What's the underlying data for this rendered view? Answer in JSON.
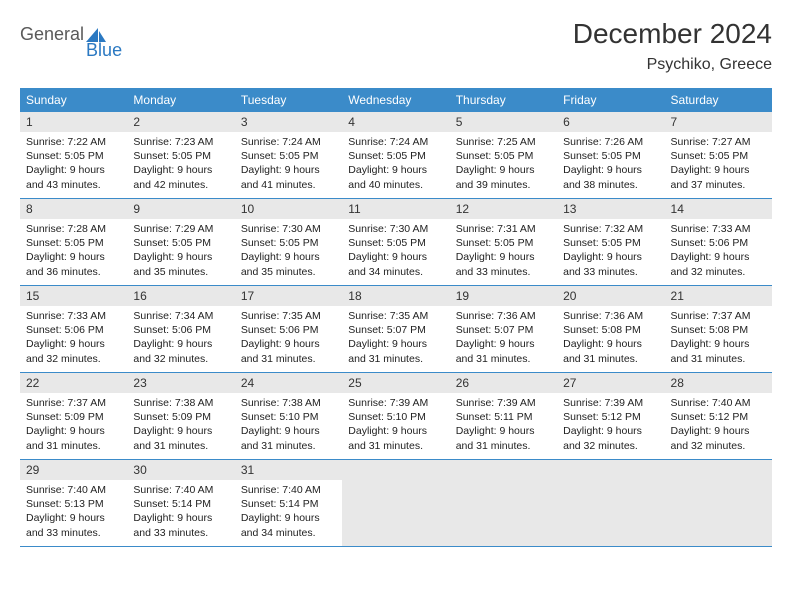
{
  "logo": {
    "text1": "General",
    "text2": "Blue"
  },
  "title": "December 2024",
  "location": "Psychiko, Greece",
  "colors": {
    "header_bg": "#3b8bc9",
    "header_text": "#ffffff",
    "daynum_bg": "#e8e8e8",
    "border": "#3b8bc9",
    "logo_gray": "#5a5a5a",
    "logo_blue": "#2b79c2",
    "body_text": "#222222"
  },
  "weekdays": [
    "Sunday",
    "Monday",
    "Tuesday",
    "Wednesday",
    "Thursday",
    "Friday",
    "Saturday"
  ],
  "weeks": [
    [
      {
        "n": "1",
        "sr": "7:22 AM",
        "ss": "5:05 PM",
        "dl": "9 hours and 43 minutes."
      },
      {
        "n": "2",
        "sr": "7:23 AM",
        "ss": "5:05 PM",
        "dl": "9 hours and 42 minutes."
      },
      {
        "n": "3",
        "sr": "7:24 AM",
        "ss": "5:05 PM",
        "dl": "9 hours and 41 minutes."
      },
      {
        "n": "4",
        "sr": "7:24 AM",
        "ss": "5:05 PM",
        "dl": "9 hours and 40 minutes."
      },
      {
        "n": "5",
        "sr": "7:25 AM",
        "ss": "5:05 PM",
        "dl": "9 hours and 39 minutes."
      },
      {
        "n": "6",
        "sr": "7:26 AM",
        "ss": "5:05 PM",
        "dl": "9 hours and 38 minutes."
      },
      {
        "n": "7",
        "sr": "7:27 AM",
        "ss": "5:05 PM",
        "dl": "9 hours and 37 minutes."
      }
    ],
    [
      {
        "n": "8",
        "sr": "7:28 AM",
        "ss": "5:05 PM",
        "dl": "9 hours and 36 minutes."
      },
      {
        "n": "9",
        "sr": "7:29 AM",
        "ss": "5:05 PM",
        "dl": "9 hours and 35 minutes."
      },
      {
        "n": "10",
        "sr": "7:30 AM",
        "ss": "5:05 PM",
        "dl": "9 hours and 35 minutes."
      },
      {
        "n": "11",
        "sr": "7:30 AM",
        "ss": "5:05 PM",
        "dl": "9 hours and 34 minutes."
      },
      {
        "n": "12",
        "sr": "7:31 AM",
        "ss": "5:05 PM",
        "dl": "9 hours and 33 minutes."
      },
      {
        "n": "13",
        "sr": "7:32 AM",
        "ss": "5:05 PM",
        "dl": "9 hours and 33 minutes."
      },
      {
        "n": "14",
        "sr": "7:33 AM",
        "ss": "5:06 PM",
        "dl": "9 hours and 32 minutes."
      }
    ],
    [
      {
        "n": "15",
        "sr": "7:33 AM",
        "ss": "5:06 PM",
        "dl": "9 hours and 32 minutes."
      },
      {
        "n": "16",
        "sr": "7:34 AM",
        "ss": "5:06 PM",
        "dl": "9 hours and 32 minutes."
      },
      {
        "n": "17",
        "sr": "7:35 AM",
        "ss": "5:06 PM",
        "dl": "9 hours and 31 minutes."
      },
      {
        "n": "18",
        "sr": "7:35 AM",
        "ss": "5:07 PM",
        "dl": "9 hours and 31 minutes."
      },
      {
        "n": "19",
        "sr": "7:36 AM",
        "ss": "5:07 PM",
        "dl": "9 hours and 31 minutes."
      },
      {
        "n": "20",
        "sr": "7:36 AM",
        "ss": "5:08 PM",
        "dl": "9 hours and 31 minutes."
      },
      {
        "n": "21",
        "sr": "7:37 AM",
        "ss": "5:08 PM",
        "dl": "9 hours and 31 minutes."
      }
    ],
    [
      {
        "n": "22",
        "sr": "7:37 AM",
        "ss": "5:09 PM",
        "dl": "9 hours and 31 minutes."
      },
      {
        "n": "23",
        "sr": "7:38 AM",
        "ss": "5:09 PM",
        "dl": "9 hours and 31 minutes."
      },
      {
        "n": "24",
        "sr": "7:38 AM",
        "ss": "5:10 PM",
        "dl": "9 hours and 31 minutes."
      },
      {
        "n": "25",
        "sr": "7:39 AM",
        "ss": "5:10 PM",
        "dl": "9 hours and 31 minutes."
      },
      {
        "n": "26",
        "sr": "7:39 AM",
        "ss": "5:11 PM",
        "dl": "9 hours and 31 minutes."
      },
      {
        "n": "27",
        "sr": "7:39 AM",
        "ss": "5:12 PM",
        "dl": "9 hours and 32 minutes."
      },
      {
        "n": "28",
        "sr": "7:40 AM",
        "ss": "5:12 PM",
        "dl": "9 hours and 32 minutes."
      }
    ],
    [
      {
        "n": "29",
        "sr": "7:40 AM",
        "ss": "5:13 PM",
        "dl": "9 hours and 33 minutes."
      },
      {
        "n": "30",
        "sr": "7:40 AM",
        "ss": "5:14 PM",
        "dl": "9 hours and 33 minutes."
      },
      {
        "n": "31",
        "sr": "7:40 AM",
        "ss": "5:14 PM",
        "dl": "9 hours and 34 minutes."
      },
      null,
      null,
      null,
      null
    ]
  ],
  "labels": {
    "sunrise": "Sunrise:",
    "sunset": "Sunset:",
    "daylight": "Daylight:"
  }
}
